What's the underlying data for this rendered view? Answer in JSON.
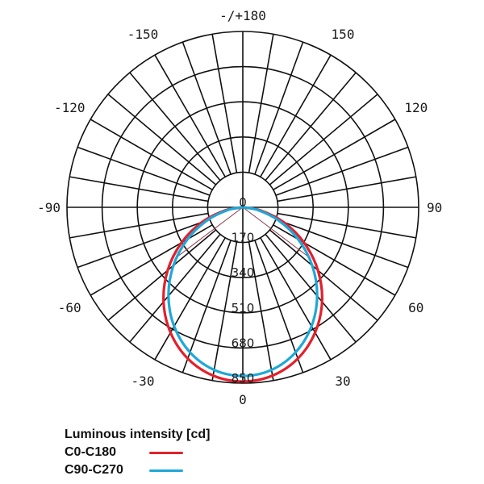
{
  "chart_data": {
    "type": "polar",
    "title": "",
    "subtitle": "",
    "angle_unit": "degrees",
    "angle_ticks": [
      {
        "angle": 180,
        "label": "-/+180"
      },
      {
        "angle": -150,
        "label": "-150"
      },
      {
        "angle": 150,
        "label": "150"
      },
      {
        "angle": -120,
        "label": "-120"
      },
      {
        "angle": 120,
        "label": "120"
      },
      {
        "angle": -90,
        "label": "-90"
      },
      {
        "angle": 90,
        "label": "90"
      },
      {
        "angle": -60,
        "label": "-60"
      },
      {
        "angle": 60,
        "label": "60"
      },
      {
        "angle": -30,
        "label": "-30"
      },
      {
        "angle": 30,
        "label": "30"
      },
      {
        "angle": 0,
        "label": "0"
      }
    ],
    "radial_ticks": [
      0,
      170,
      340,
      510,
      680,
      850
    ],
    "radial_tick_labels": [
      "0",
      "170",
      "340",
      "510",
      "680",
      "850"
    ],
    "rlim": [
      0,
      850
    ],
    "spoke_step_deg": 10,
    "grid": true,
    "radial_label": "Luminous intensity [cd]",
    "legend_position": "bottom-left",
    "angles": [
      -90,
      -80,
      -70,
      -60,
      -50,
      -40,
      -30,
      -20,
      -10,
      0,
      10,
      20,
      30,
      40,
      50,
      60,
      70,
      80,
      90
    ],
    "series": [
      {
        "name": "C0-C180",
        "color": "#e3202b",
        "values": [
          0,
          87,
          210,
          342,
          474,
          596,
          699,
          778,
          826,
          842,
          826,
          778,
          699,
          596,
          474,
          342,
          210,
          87,
          0
        ]
      },
      {
        "name": "C90-C270",
        "color": "#1ea8d8",
        "values": [
          0,
          71,
          182,
          309,
          438,
          559,
          664,
          746,
          798,
          815,
          798,
          746,
          664,
          559,
          438,
          309,
          182,
          71,
          0
        ]
      }
    ],
    "annotations": [
      {
        "type": "beam-angle-line",
        "angle": -53,
        "color": "#8b3a4a"
      },
      {
        "type": "beam-angle-line",
        "angle": 53,
        "color": "#8b3a4a"
      }
    ]
  },
  "legend": {
    "title": "Luminous intensity [cd]",
    "items": [
      {
        "label": "C0-C180",
        "color": "#e3202b"
      },
      {
        "label": "C90-C270",
        "color": "#1ea8d8"
      }
    ]
  }
}
